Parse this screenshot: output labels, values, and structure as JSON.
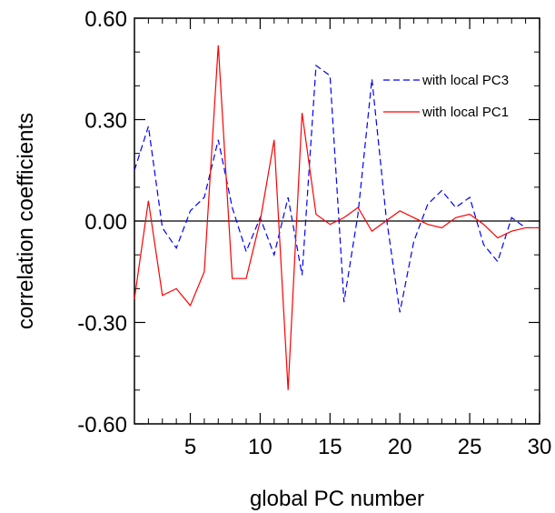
{
  "chart_data": {
    "type": "line",
    "title": "",
    "xlabel": "global PC number",
    "ylabel": "correlation coefficients",
    "xlim": [
      1,
      30
    ],
    "ylim": [
      -0.6,
      0.6
    ],
    "x_ticks": [
      5,
      10,
      15,
      20,
      25,
      30
    ],
    "x_tick_labels": [
      "5",
      "10",
      "15",
      "20",
      "25",
      "30"
    ],
    "y_ticks": [
      -0.6,
      -0.3,
      0.0,
      0.3,
      0.6
    ],
    "y_tick_labels": [
      "-0.60",
      "-0.30",
      "0.00",
      "0.30",
      "0.60"
    ],
    "zero_line": true,
    "grid": false,
    "legend_position": "top-right",
    "x": [
      1,
      2,
      3,
      4,
      5,
      6,
      7,
      8,
      9,
      10,
      11,
      12,
      13,
      14,
      15,
      16,
      17,
      18,
      19,
      20,
      21,
      22,
      23,
      24,
      25,
      26,
      27,
      28,
      29,
      30
    ],
    "series": [
      {
        "name": "with local PC3",
        "color": "#0000ff",
        "style": "dashed",
        "values": [
          0.15,
          0.28,
          -0.02,
          -0.08,
          0.03,
          0.07,
          0.24,
          0.04,
          -0.09,
          0.01,
          -0.1,
          0.07,
          -0.16,
          0.46,
          0.43,
          -0.24,
          0.02,
          0.42,
          0.02,
          -0.27,
          -0.06,
          0.05,
          0.09,
          0.04,
          0.07,
          -0.07,
          -0.12,
          0.01,
          -0.02,
          -0.02
        ]
      },
      {
        "name": "with local PC1",
        "color": "#ff0000",
        "style": "solid",
        "values": [
          -0.23,
          0.06,
          -0.22,
          -0.2,
          -0.25,
          -0.15,
          0.52,
          -0.17,
          -0.17,
          0.0,
          0.24,
          -0.5,
          0.32,
          0.02,
          -0.01,
          0.01,
          0.04,
          -0.03,
          0.0,
          0.03,
          0.01,
          -0.01,
          -0.02,
          0.01,
          0.02,
          -0.01,
          -0.05,
          -0.03,
          -0.02,
          -0.02
        ]
      }
    ]
  }
}
